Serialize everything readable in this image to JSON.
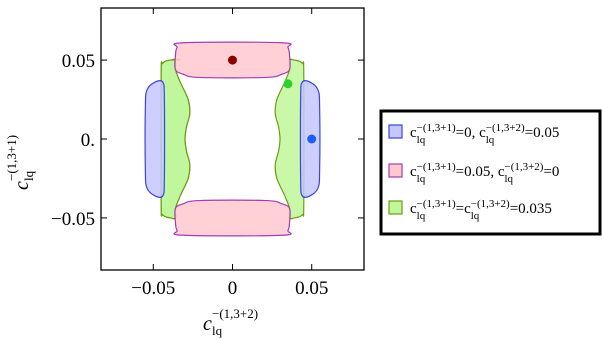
{
  "chart_data": {
    "type": "contour-regions",
    "xlim": [
      -0.083,
      0.083
    ],
    "ylim": [
      -0.083,
      0.083
    ],
    "x_ticks": [
      {
        "value": -0.05,
        "label": "−0.05"
      },
      {
        "value": 0,
        "label": "0"
      },
      {
        "value": 0.05,
        "label": "0.05"
      }
    ],
    "y_ticks": [
      {
        "value": 0.05,
        "label": "0.05"
      },
      {
        "value": 0,
        "label": "0."
      },
      {
        "value": -0.05,
        "label": "−0.05"
      }
    ],
    "xlabel": {
      "base": "c",
      "sub": "lq",
      "sup": "−(1,3+2)"
    },
    "ylabel": {
      "base": "c",
      "sub": "lq",
      "sup": "−(1,3+1)"
    },
    "legend_position": "right",
    "grid": false,
    "series": [
      {
        "name": "blue",
        "fill": "#c4c8ff",
        "stroke": "#3b44e0",
        "point_color": "#1e5cff",
        "point": [
          0.05,
          0
        ],
        "legend": [
          {
            "t": "c"
          },
          {
            "t": "−(1,3+1)",
            "s": "sup"
          },
          {
            "t": "lq",
            "s": "sub"
          },
          {
            "t": "=0, c"
          },
          {
            "t": "−(1,3+2)",
            "s": "sup"
          },
          {
            "t": "lq",
            "s": "sub"
          },
          {
            "t": "=0.05"
          }
        ],
        "regions": [
          [
            [
              -0.049,
              0.036
            ],
            [
              -0.044,
              0.036
            ],
            [
              -0.043,
              0.025
            ],
            [
              -0.043,
              -0.025
            ],
            [
              -0.044,
              -0.036
            ],
            [
              -0.049,
              -0.036
            ],
            [
              -0.054,
              -0.031
            ],
            [
              -0.055,
              -0.02
            ],
            [
              -0.055,
              0.02
            ],
            [
              -0.054,
              0.031
            ]
          ],
          [
            [
              0.049,
              0.036
            ],
            [
              0.054,
              0.031
            ],
            [
              0.055,
              0.02
            ],
            [
              0.055,
              -0.02
            ],
            [
              0.054,
              -0.031
            ],
            [
              0.049,
              -0.036
            ],
            [
              0.044,
              -0.036
            ],
            [
              0.043,
              -0.025
            ],
            [
              0.043,
              0.025
            ],
            [
              0.044,
              0.036
            ]
          ]
        ]
      },
      {
        "name": "pink",
        "fill": "#ffc9cf",
        "stroke": "#a43bb3",
        "point_color": "#8b0000",
        "point": [
          0,
          0.05
        ],
        "legend": [
          {
            "t": "c"
          },
          {
            "t": "−(1,3+1)",
            "s": "sup"
          },
          {
            "t": "lq",
            "s": "sub"
          },
          {
            "t": "=0.05, c"
          },
          {
            "t": "−(1,3+2)",
            "s": "sup"
          },
          {
            "t": "lq",
            "s": "sub"
          },
          {
            "t": "=0"
          }
        ],
        "regions": [
          [
            [
              -0.031,
              0.061
            ],
            [
              0.031,
              0.061
            ],
            [
              0.035,
              0.058
            ],
            [
              0.036,
              0.053
            ],
            [
              0.036,
              0.044
            ],
            [
              0.031,
              0.041
            ],
            [
              0.021,
              0.039
            ],
            [
              -0.021,
              0.039
            ],
            [
              -0.031,
              0.041
            ],
            [
              -0.036,
              0.044
            ],
            [
              -0.036,
              0.053
            ],
            [
              -0.035,
              0.058
            ]
          ],
          [
            [
              -0.031,
              -0.061
            ],
            [
              -0.035,
              -0.058
            ],
            [
              -0.036,
              -0.053
            ],
            [
              -0.036,
              -0.044
            ],
            [
              -0.031,
              -0.041
            ],
            [
              -0.021,
              -0.039
            ],
            [
              0.021,
              -0.039
            ],
            [
              0.031,
              -0.041
            ],
            [
              0.036,
              -0.044
            ],
            [
              0.036,
              -0.053
            ],
            [
              0.035,
              -0.058
            ],
            [
              0.031,
              -0.061
            ]
          ]
        ]
      },
      {
        "name": "green",
        "fill": "#bff79a",
        "stroke": "#6e9d13",
        "point_color": "#2ed12e",
        "point": [
          0.035,
          0.035
        ],
        "legend": [
          {
            "t": "c"
          },
          {
            "t": "−(1,3+1)",
            "s": "sup"
          },
          {
            "t": "lq",
            "s": "sub"
          },
          {
            "t": "=c"
          },
          {
            "t": "−(1,3+2)",
            "s": "sup"
          },
          {
            "t": "lq",
            "s": "sub"
          },
          {
            "t": "=0.035"
          }
        ],
        "regions": [
          [
            [
              -0.036,
              0.044
            ],
            [
              -0.036,
              0.05
            ],
            [
              -0.039,
              0.05
            ],
            [
              -0.044,
              0.048
            ],
            [
              -0.045,
              0.04
            ],
            [
              -0.045,
              -0.04
            ],
            [
              -0.044,
              -0.048
            ],
            [
              -0.039,
              -0.05
            ],
            [
              -0.036,
              -0.05
            ],
            [
              -0.036,
              -0.044
            ],
            [
              -0.033,
              -0.036
            ],
            [
              -0.028,
              -0.025
            ],
            [
              -0.027,
              -0.016
            ],
            [
              -0.029,
              -0.008
            ],
            [
              -0.03,
              0
            ],
            [
              -0.029,
              0.008
            ],
            [
              -0.027,
              0.016
            ],
            [
              -0.028,
              0.025
            ],
            [
              -0.033,
              0.036
            ]
          ],
          [
            [
              -0.033,
              0.05
            ],
            [
              -0.036,
              0.05
            ],
            [
              -0.036,
              0.044
            ],
            [
              -0.033,
              0.036
            ],
            [
              -0.028,
              0.025
            ],
            [
              -0.027,
              0.016
            ],
            [
              -0.029,
              0.008
            ],
            [
              -0.03,
              0
            ],
            [
              -0.029,
              -0.008
            ],
            [
              -0.027,
              -0.016
            ],
            [
              -0.028,
              -0.025
            ],
            [
              -0.033,
              -0.036
            ],
            [
              -0.036,
              -0.044
            ],
            [
              -0.036,
              -0.05
            ],
            [
              -0.039,
              -0.05
            ],
            [
              -0.044,
              -0.048
            ],
            [
              -0.045,
              -0.04
            ],
            [
              -0.045,
              0.04
            ],
            [
              -0.044,
              0.048
            ],
            [
              -0.039,
              0.05
            ]
          ],
          [
            [
              0.036,
              0.044
            ],
            [
              0.033,
              0.036
            ],
            [
              0.028,
              0.025
            ],
            [
              0.027,
              0.016
            ],
            [
              0.029,
              0.008
            ],
            [
              0.03,
              0
            ],
            [
              0.029,
              -0.008
            ],
            [
              0.027,
              -0.016
            ],
            [
              0.028,
              -0.025
            ],
            [
              0.033,
              -0.036
            ],
            [
              0.036,
              -0.044
            ],
            [
              0.036,
              -0.05
            ],
            [
              0.039,
              -0.05
            ],
            [
              0.044,
              -0.048
            ],
            [
              0.045,
              -0.04
            ],
            [
              0.045,
              0.04
            ],
            [
              0.044,
              0.048
            ],
            [
              0.039,
              0.05
            ],
            [
              0.036,
              0.05
            ]
          ]
        ]
      }
    ]
  }
}
